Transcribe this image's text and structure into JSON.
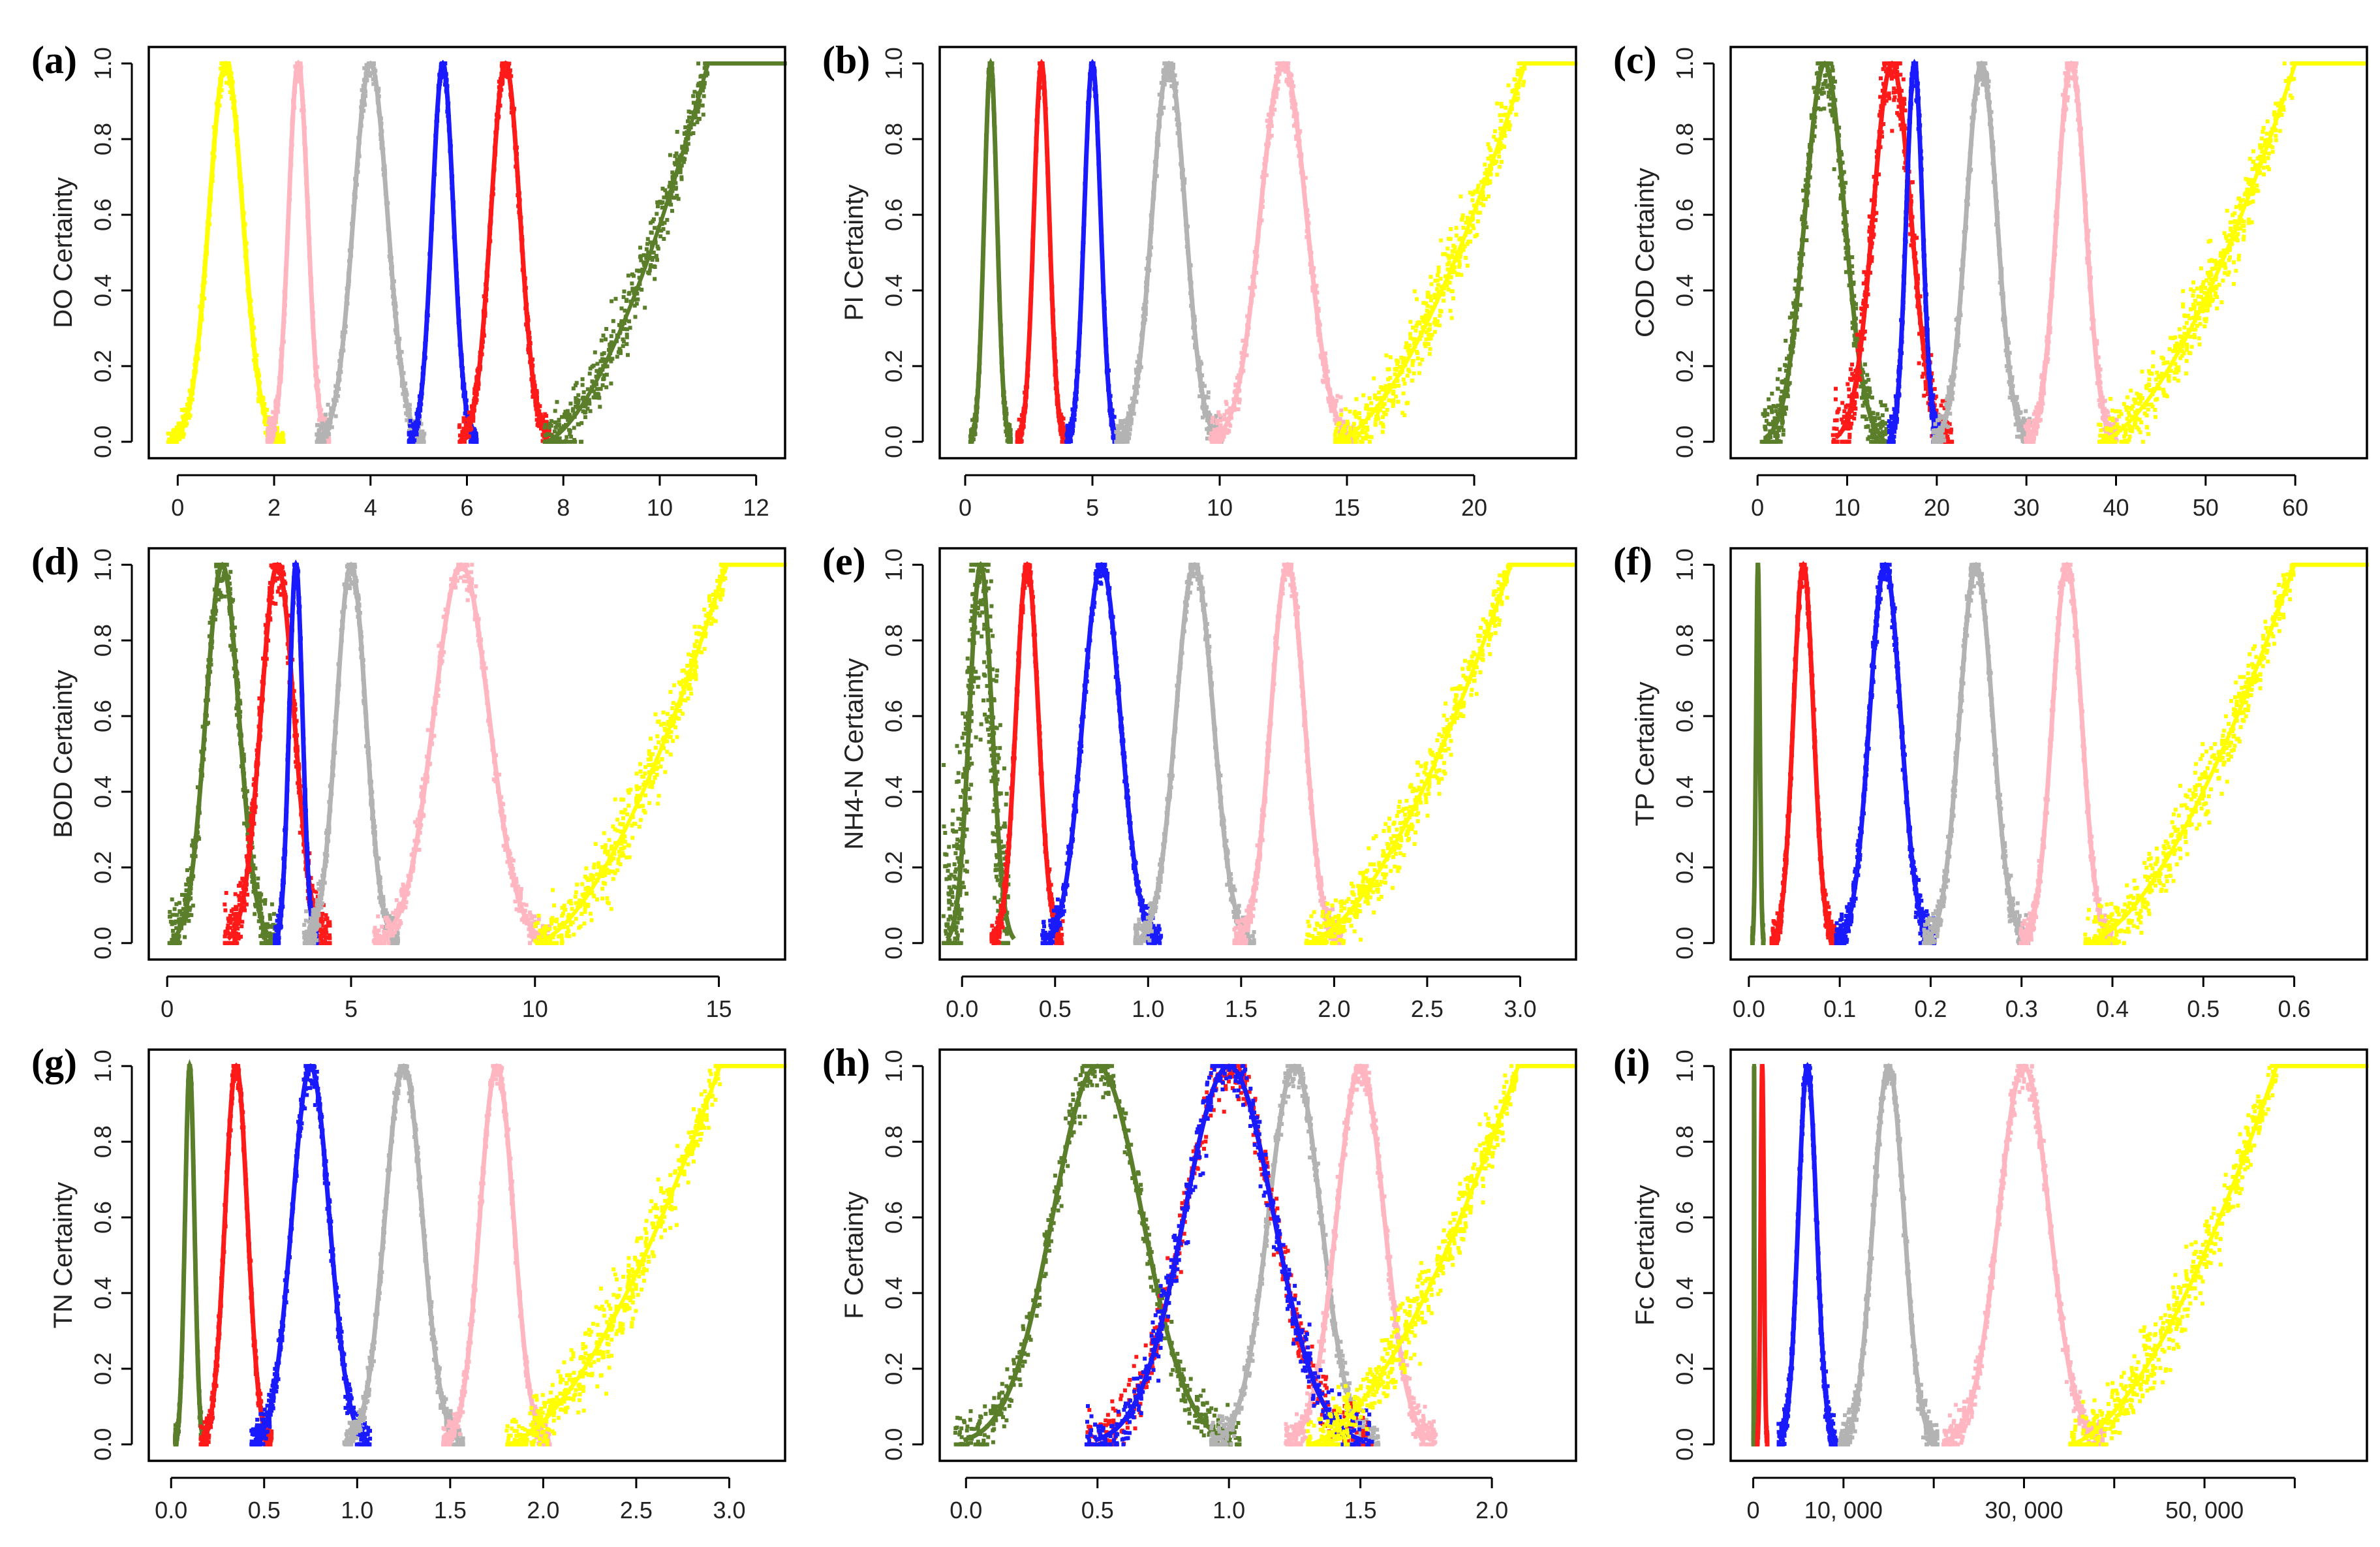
{
  "colors": {
    "green": "#5a7e2a",
    "red": "#ff1a1a",
    "blue": "#1a1aff",
    "gray": "#b3b3b3",
    "pink": "#ffb6c1",
    "yellow": "#ffff00"
  },
  "chart_data": [
    {
      "type": "scatter",
      "letter": "(a)",
      "ylabel": "DO Certainty",
      "xlim": [
        -0.6,
        12.6
      ],
      "ylim": [
        0,
        1
      ],
      "xticks": [
        "0",
        "2",
        "4",
        "6",
        "8",
        "10",
        "12"
      ],
      "xtick_values": [
        0,
        2,
        4,
        6,
        8,
        10,
        12
      ],
      "yticks": [
        "0.0",
        "0.2",
        "0.4",
        "0.6",
        "0.8",
        "1.0"
      ],
      "series": [
        {
          "name": "yellow",
          "kind": "bell",
          "center": 1.0,
          "sd": 0.35,
          "spread": 0.6,
          "noise": 0.02,
          "xmin": -0.2,
          "xmax": 2.2
        },
        {
          "name": "pink",
          "kind": "bell",
          "center": 2.5,
          "sd": 0.2,
          "spread": 0.45,
          "noise": 0.02
        },
        {
          "name": "gray",
          "kind": "bell",
          "center": 4.0,
          "sd": 0.35,
          "spread": 0.6,
          "noise": 0.02
        },
        {
          "name": "blue",
          "kind": "bell",
          "center": 5.5,
          "sd": 0.22,
          "spread": 0.4,
          "noise": 0.015
        },
        {
          "name": "red",
          "kind": "bell",
          "center": 6.8,
          "sd": 0.3,
          "spread": 0.5,
          "noise": 0.02
        },
        {
          "name": "green",
          "kind": "rise",
          "start": 7.6,
          "full": 11.0,
          "xmax": 12.6,
          "noise": 0.05
        }
      ]
    },
    {
      "type": "scatter",
      "letter": "(b)",
      "ylabel": "PI Certainty",
      "xlim": [
        -1,
        24
      ],
      "ylim": [
        0,
        1
      ],
      "xticks": [
        "0",
        "5",
        "10",
        "15",
        "20"
      ],
      "xtick_values": [
        0,
        5,
        10,
        15,
        20
      ],
      "yticks": [
        "0.0",
        "0.2",
        "0.4",
        "0.6",
        "0.8",
        "1.0"
      ],
      "series": [
        {
          "name": "green",
          "kind": "bell",
          "center": 1.0,
          "sd": 0.25,
          "spread": 0.45,
          "noise": 0.015
        },
        {
          "name": "red",
          "kind": "bell",
          "center": 3.0,
          "sd": 0.3,
          "spread": 0.5,
          "noise": 0.015
        },
        {
          "name": "blue",
          "kind": "bell",
          "center": 5.0,
          "sd": 0.32,
          "spread": 0.55,
          "noise": 0.015
        },
        {
          "name": "gray",
          "kind": "bell",
          "center": 8.0,
          "sd": 0.65,
          "spread": 0.95,
          "noise": 0.025
        },
        {
          "name": "pink",
          "kind": "bell",
          "center": 12.5,
          "sd": 0.9,
          "spread": 1.1,
          "noise": 0.025
        },
        {
          "name": "yellow",
          "kind": "rise",
          "start": 14.5,
          "full": 22.0,
          "xmax": 24,
          "noise": 0.05
        }
      ]
    },
    {
      "type": "scatter",
      "letter": "(c)",
      "ylabel": "COD Certainty",
      "xlim": [
        -3,
        68
      ],
      "ylim": [
        0,
        1
      ],
      "xticks": [
        "0",
        "10",
        "20",
        "30",
        "40",
        "50",
        "60"
      ],
      "xtick_values": [
        0,
        10,
        20,
        30,
        40,
        50,
        60
      ],
      "yticks": [
        "0.0",
        "0.2",
        "0.4",
        "0.6",
        "0.8",
        "1.0"
      ],
      "series": [
        {
          "name": "green",
          "kind": "bell",
          "center": 7.5,
          "sd": 2.2,
          "spread": 0.7,
          "noise": 0.05
        },
        {
          "name": "red",
          "kind": "bell",
          "center": 15.0,
          "sd": 2.1,
          "spread": 0.7,
          "noise": 0.05
        },
        {
          "name": "blue",
          "kind": "bell",
          "center": 17.5,
          "sd": 0.9,
          "spread": 0.6,
          "noise": 0.025
        },
        {
          "name": "gray",
          "kind": "bell",
          "center": 25.0,
          "sd": 1.7,
          "spread": 0.9,
          "noise": 0.025
        },
        {
          "name": "pink",
          "kind": "bell",
          "center": 35.0,
          "sd": 1.6,
          "spread": 1.0,
          "noise": 0.025
        },
        {
          "name": "yellow",
          "kind": "rise",
          "start": 38.0,
          "full": 60.0,
          "xmax": 68,
          "noise": 0.05
        }
      ]
    },
    {
      "type": "scatter",
      "letter": "(d)",
      "ylabel": "BOD Certainty",
      "xlim": [
        -0.5,
        16.8
      ],
      "ylim": [
        0,
        1
      ],
      "xticks": [
        "0",
        "5",
        "10",
        "15"
      ],
      "xtick_values": [
        0,
        5,
        10,
        15
      ],
      "yticks": [
        "0.0",
        "0.2",
        "0.4",
        "0.6",
        "0.8",
        "1.0"
      ],
      "series": [
        {
          "name": "green",
          "kind": "bell",
          "center": 1.5,
          "sd": 0.45,
          "spread": 0.7,
          "noise": 0.04
        },
        {
          "name": "red",
          "kind": "bell",
          "center": 3.0,
          "sd": 0.45,
          "spread": 0.7,
          "noise": 0.04
        },
        {
          "name": "blue",
          "kind": "bell",
          "center": 3.5,
          "sd": 0.18,
          "spread": 0.6,
          "noise": 0.02
        },
        {
          "name": "gray",
          "kind": "bell",
          "center": 5.0,
          "sd": 0.4,
          "spread": 0.8,
          "noise": 0.025
        },
        {
          "name": "pink",
          "kind": "bell",
          "center": 8.0,
          "sd": 0.75,
          "spread": 0.9,
          "noise": 0.025
        },
        {
          "name": "yellow",
          "kind": "rise",
          "start": 10.0,
          "full": 15.2,
          "xmax": 16.8,
          "noise": 0.05
        }
      ]
    },
    {
      "type": "scatter",
      "letter": "(e)",
      "ylabel": "NH4-N Certainty",
      "xlim": [
        -0.12,
        3.3
      ],
      "ylim": [
        0,
        1
      ],
      "xticks": [
        "0.0",
        "0.5",
        "1.0",
        "1.5",
        "2.0",
        "2.5",
        "3.0"
      ],
      "xtick_values": [
        0,
        0.5,
        1,
        1.5,
        2,
        2.5,
        3
      ],
      "yticks": [
        "0.0",
        "0.2",
        "0.4",
        "0.6",
        "0.8",
        "1.0"
      ],
      "series": [
        {
          "name": "green",
          "kind": "bell",
          "center": 0.1,
          "sd": 0.06,
          "spread": 0.8,
          "noise": 0.15,
          "xmin": -0.1,
          "xmax": 0.25
        },
        {
          "name": "red",
          "kind": "bell",
          "center": 0.35,
          "sd": 0.06,
          "spread": 0.6,
          "noise": 0.02
        },
        {
          "name": "blue",
          "kind": "bell",
          "center": 0.75,
          "sd": 0.1,
          "spread": 0.6,
          "noise": 0.02
        },
        {
          "name": "gray",
          "kind": "bell",
          "center": 1.25,
          "sd": 0.1,
          "spread": 0.7,
          "noise": 0.02
        },
        {
          "name": "pink",
          "kind": "bell",
          "center": 1.75,
          "sd": 0.09,
          "spread": 0.7,
          "noise": 0.02
        },
        {
          "name": "yellow",
          "kind": "rise",
          "start": 1.85,
          "full": 2.95,
          "xmax": 3.3,
          "noise": 0.05
        }
      ]
    },
    {
      "type": "scatter",
      "letter": "(f)",
      "ylabel": "TP Certainty",
      "xlim": [
        -0.02,
        0.68
      ],
      "ylim": [
        0,
        1
      ],
      "xticks": [
        "0.0",
        "0.1",
        "0.2",
        "0.3",
        "0.4",
        "0.5",
        "0.6"
      ],
      "xtick_values": [
        0,
        0.1,
        0.2,
        0.3,
        0.4,
        0.5,
        0.6
      ],
      "yticks": [
        "0.0",
        "0.2",
        "0.4",
        "0.6",
        "0.8",
        "1.0"
      ],
      "series": [
        {
          "name": "green",
          "kind": "bell",
          "center": 0.01,
          "sd": 0.002,
          "spread": 0.5,
          "noise": 0.01
        },
        {
          "name": "red",
          "kind": "bell",
          "center": 0.06,
          "sd": 0.011,
          "spread": 0.6,
          "noise": 0.02
        },
        {
          "name": "blue",
          "kind": "bell",
          "center": 0.15,
          "sd": 0.017,
          "spread": 0.6,
          "noise": 0.025
        },
        {
          "name": "gray",
          "kind": "bell",
          "center": 0.25,
          "sd": 0.018,
          "spread": 0.7,
          "noise": 0.025
        },
        {
          "name": "pink",
          "kind": "bell",
          "center": 0.35,
          "sd": 0.016,
          "spread": 0.7,
          "noise": 0.02
        },
        {
          "name": "yellow",
          "kind": "rise",
          "start": 0.37,
          "full": 0.6,
          "xmax": 0.68,
          "noise": 0.05
        }
      ]
    },
    {
      "type": "scatter",
      "letter": "(g)",
      "ylabel": "TN Certainty",
      "xlim": [
        -0.12,
        3.3
      ],
      "ylim": [
        0,
        1
      ],
      "xticks": [
        "0.0",
        "0.5",
        "1.0",
        "1.5",
        "2.0",
        "2.5",
        "3.0"
      ],
      "xtick_values": [
        0,
        0.5,
        1,
        1.5,
        2,
        2.5,
        3
      ],
      "yticks": [
        "0.0",
        "0.2",
        "0.4",
        "0.6",
        "0.8",
        "1.0"
      ],
      "series": [
        {
          "name": "green",
          "kind": "bell",
          "center": 0.1,
          "sd": 0.025,
          "spread": 0.5,
          "noise": 0.015
        },
        {
          "name": "red",
          "kind": "bell",
          "center": 0.35,
          "sd": 0.06,
          "spread": 0.6,
          "noise": 0.02
        },
        {
          "name": "blue",
          "kind": "bell",
          "center": 0.75,
          "sd": 0.1,
          "spread": 0.6,
          "noise": 0.025
        },
        {
          "name": "gray",
          "kind": "bell",
          "center": 1.25,
          "sd": 0.1,
          "spread": 0.7,
          "noise": 0.02
        },
        {
          "name": "pink",
          "kind": "bell",
          "center": 1.75,
          "sd": 0.09,
          "spread": 0.7,
          "noise": 0.02
        },
        {
          "name": "yellow",
          "kind": "rise",
          "start": 1.8,
          "full": 2.95,
          "xmax": 3.3,
          "noise": 0.05
        }
      ]
    },
    {
      "type": "scatter",
      "letter": "(h)",
      "ylabel": "F Certainty",
      "xlim": [
        -0.1,
        2.32
      ],
      "ylim": [
        0,
        1
      ],
      "xticks": [
        "0.0",
        "0.5",
        "1.0",
        "1.5",
        "2.0"
      ],
      "xtick_values": [
        0,
        0.5,
        1,
        1.5,
        2
      ],
      "yticks": [
        "0.0",
        "0.2",
        "0.4",
        "0.6",
        "0.8",
        "1.0"
      ],
      "series": [
        {
          "name": "green",
          "kind": "bell",
          "center": 0.5,
          "sd": 0.17,
          "spread": 0.9,
          "noise": 0.035
        },
        {
          "name": "gray",
          "kind": "bell",
          "center": 1.25,
          "sd": 0.1,
          "spread": 0.7,
          "noise": 0.025
        },
        {
          "name": "pink",
          "kind": "bell",
          "center": 1.5,
          "sd": 0.09,
          "spread": 0.7,
          "noise": 0.025
        },
        {
          "name": "red",
          "kind": "bell",
          "center": 1.0,
          "sd": 0.17,
          "spread": 0.7,
          "noise": 0.04
        },
        {
          "name": "blue",
          "kind": "bell",
          "center": 1.0,
          "sd": 0.17,
          "spread": 0.7,
          "noise": 0.04
        },
        {
          "name": "yellow",
          "kind": "rise",
          "start": 1.3,
          "full": 2.1,
          "xmax": 2.32,
          "noise": 0.05
        }
      ]
    },
    {
      "type": "scatter",
      "letter": "(i)",
      "ylabel": "Fc Certainty",
      "xlim": [
        -2500,
        68000
      ],
      "ylim": [
        0,
        1
      ],
      "xticks": [
        "0",
        "10, 000",
        "30, 000",
        "50, 000"
      ],
      "xtick_values": [
        0,
        10000,
        30000,
        50000
      ],
      "minor_ticks": [
        20000,
        40000,
        60000
      ],
      "yticks": [
        "0.0",
        "0.2",
        "0.4",
        "0.6",
        "0.8",
        "1.0"
      ],
      "series": [
        {
          "name": "green",
          "kind": "bell",
          "center": 100,
          "sd": 25,
          "spread": 0.4,
          "noise": 0.01
        },
        {
          "name": "red",
          "kind": "bell",
          "center": 1000,
          "sd": 180,
          "spread": 0.5,
          "noise": 0.015
        },
        {
          "name": "blue",
          "kind": "bell",
          "center": 6000,
          "sd": 1000,
          "spread": 0.6,
          "noise": 0.025
        },
        {
          "name": "gray",
          "kind": "bell",
          "center": 15000,
          "sd": 1700,
          "spread": 0.7,
          "noise": 0.025
        },
        {
          "name": "pink",
          "kind": "bell",
          "center": 30000,
          "sd": 2800,
          "spread": 0.8,
          "noise": 0.025
        },
        {
          "name": "yellow",
          "kind": "rise",
          "start": 35000,
          "full": 58000,
          "xmax": 68000,
          "noise": 0.05
        }
      ]
    }
  ]
}
